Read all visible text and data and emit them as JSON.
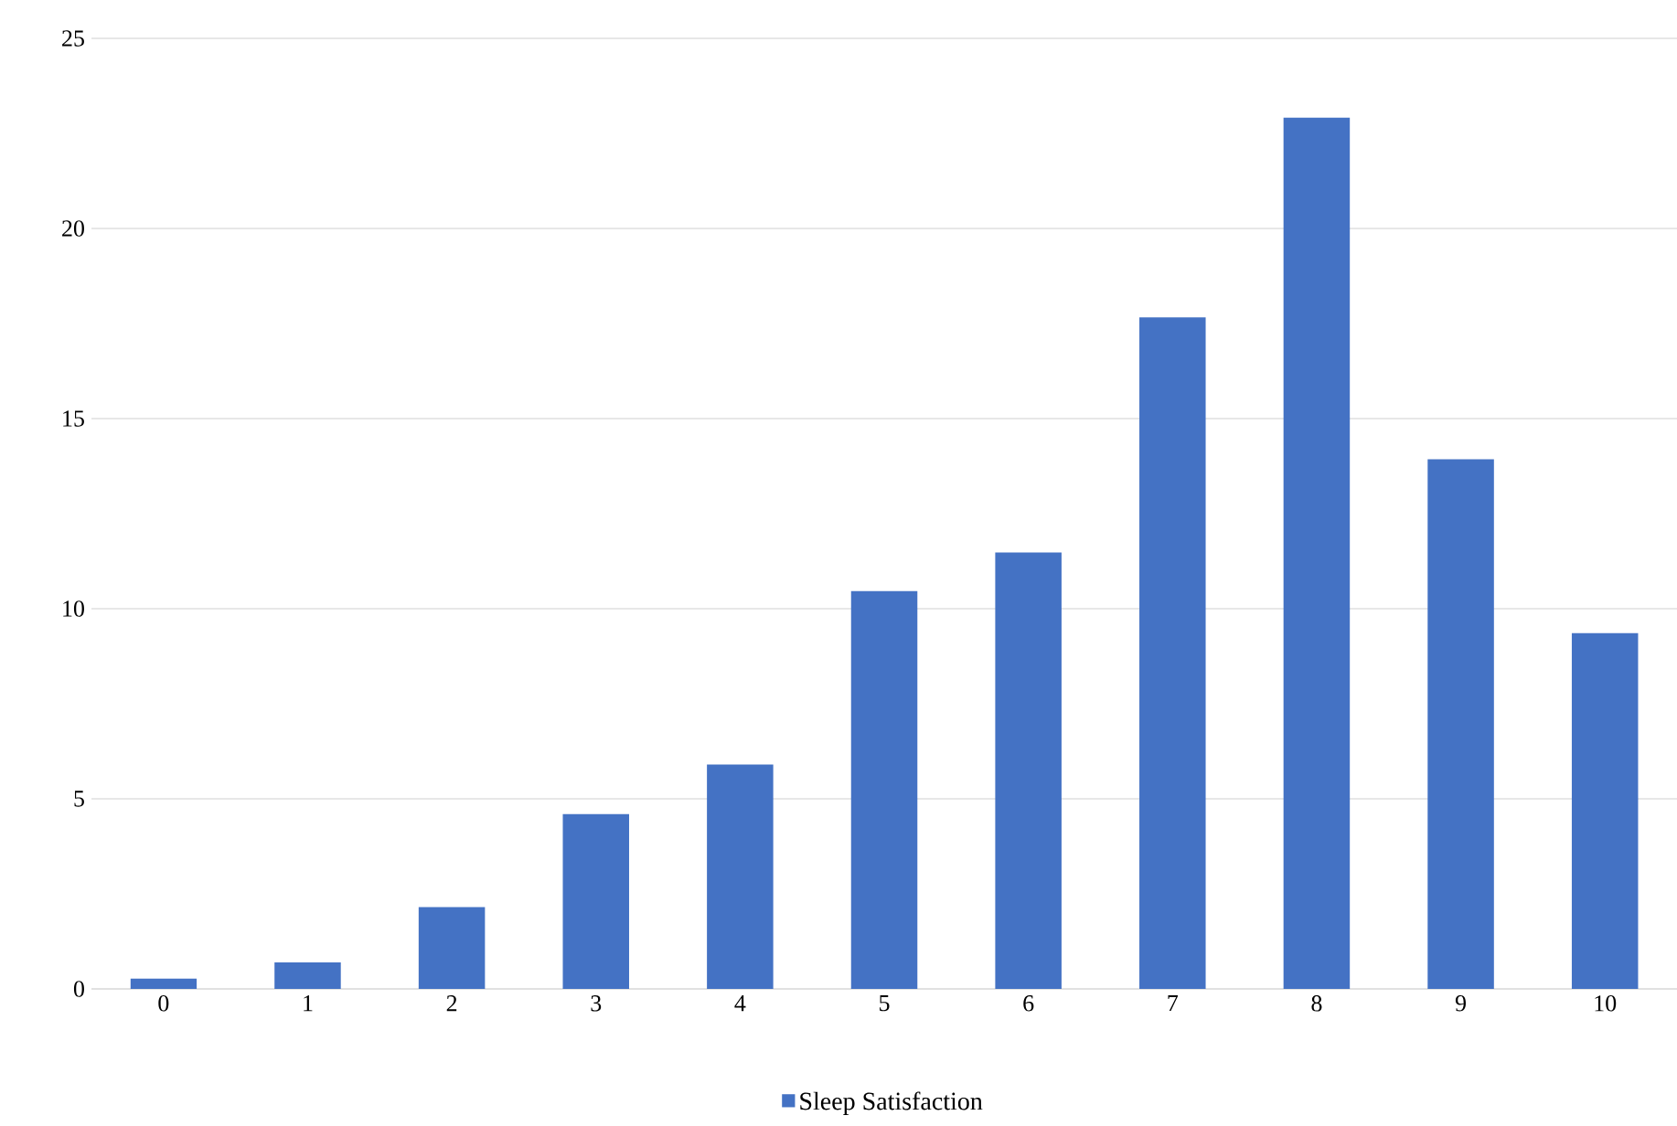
{
  "chart_data": {
    "type": "bar",
    "categories": [
      "0",
      "1",
      "2",
      "3",
      "4",
      "5",
      "6",
      "7",
      "8",
      "9",
      "10"
    ],
    "series": [
      {
        "name": "Sleep Satisfaction",
        "color": "#4472c4",
        "values": [
          0.27,
          0.7,
          2.15,
          4.6,
          5.9,
          10.46,
          11.48,
          17.66,
          22.92,
          13.93,
          9.36
        ]
      }
    ],
    "ylim": [
      0,
      25
    ],
    "yticks": [
      0,
      5,
      10,
      15,
      20,
      25
    ],
    "grid": "y",
    "legend": "bottom"
  }
}
